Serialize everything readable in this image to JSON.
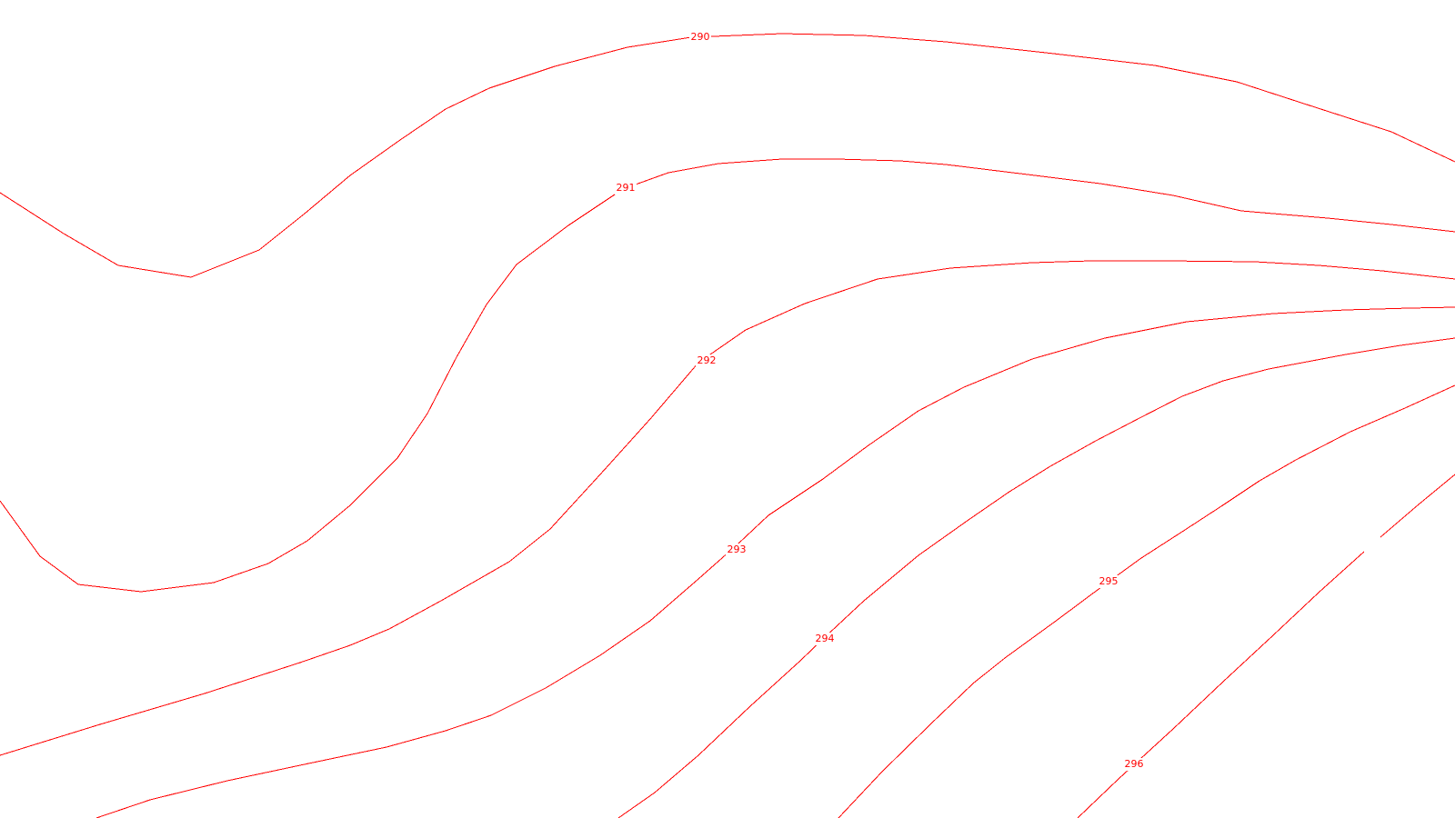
{
  "chart_data": {
    "type": "contour",
    "title": "",
    "xlabel": "",
    "ylabel": "",
    "grid": false,
    "legend": "none",
    "line_color": "#ff0000",
    "background_color": "#ffffff",
    "levels": [
      {
        "value": 290,
        "label": "290"
      },
      {
        "value": 291,
        "label": "291"
      },
      {
        "value": 292,
        "label": "292"
      },
      {
        "value": 293,
        "label": "293"
      },
      {
        "value": 294,
        "label": "294"
      },
      {
        "value": 295,
        "label": "295"
      },
      {
        "value": 296,
        "label": "296"
      }
    ]
  }
}
